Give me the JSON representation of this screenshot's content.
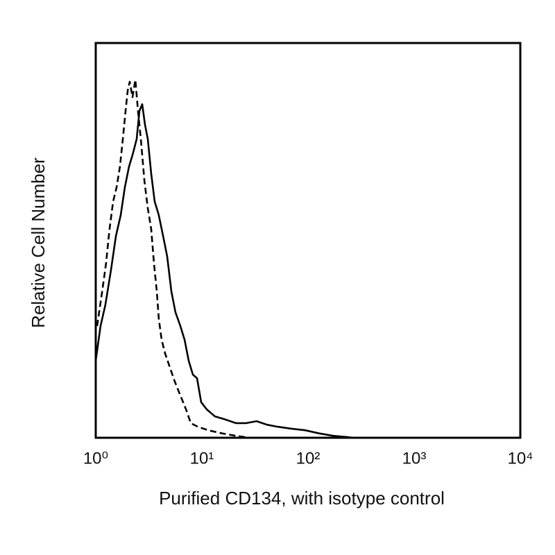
{
  "chart_data": {
    "type": "histogram-overlay",
    "x_label": "Purified CD134, with isotype control",
    "y_label": "Relative Cell Number",
    "xscale": "log",
    "xlim": [
      1,
      10000
    ],
    "ylim": [
      0,
      100
    ],
    "xticks": [
      {
        "value": 1,
        "label": "10⁰"
      },
      {
        "value": 10,
        "label": "10¹"
      },
      {
        "value": 100,
        "label": "10²"
      },
      {
        "value": 1000,
        "label": "10³"
      },
      {
        "value": 10000,
        "label": "10⁴"
      }
    ],
    "series": [
      {
        "color": "#000000",
        "line_style": "solid",
        "x": [
          1,
          1.11,
          1.23,
          1.39,
          1.55,
          1.72,
          1.88,
          2.06,
          2.25,
          2.43,
          2.58,
          2.74,
          2.91,
          3.09,
          3.33,
          3.59,
          3.93,
          4.31,
          4.71,
          5.16,
          5.64,
          6.27,
          6.87,
          7.51,
          8.22,
          9.0,
          9.85,
          11.1,
          13.3,
          16.7,
          20.9,
          26.2,
          32.8,
          41.1,
          51.5,
          69.7,
          94.1,
          127,
          172,
          232,
          270
        ],
        "values": [
          19.5,
          28.3,
          33.6,
          42.4,
          51.1,
          56.4,
          63.4,
          68.7,
          72.2,
          75.7,
          82.8,
          84.5,
          79.3,
          75.7,
          67.0,
          59.9,
          56.4,
          51.1,
          45.9,
          37.1,
          31.8,
          28.3,
          24.8,
          19.5,
          16.0,
          15.1,
          9.0,
          7.2,
          5.4,
          4.6,
          3.7,
          3.7,
          4.2,
          3.3,
          2.8,
          2.3,
          1.9,
          1.1,
          0.5,
          0.2,
          0
        ]
      },
      {
        "color": "#000000",
        "line_style": "dashed",
        "x": [
          1.03,
          1.15,
          1.25,
          1.35,
          1.46,
          1.57,
          1.69,
          1.8,
          1.91,
          2.0,
          2.09,
          2.22,
          2.36,
          2.5,
          2.66,
          2.87,
          3.09,
          3.33,
          3.54,
          3.76,
          3.93,
          4.18,
          4.51,
          5.0,
          5.56,
          6.27,
          7.08,
          7.86,
          9.14,
          11.5,
          15.5,
          20.9,
          28.3
        ],
        "values": [
          28.3,
          37.1,
          44.1,
          52.9,
          59.9,
          63.4,
          68.7,
          75.7,
          82.8,
          88.0,
          90.2,
          86.3,
          90.7,
          82.8,
          75.7,
          65.2,
          58.2,
          52.9,
          44.1,
          37.1,
          30.1,
          24.8,
          21.3,
          17.8,
          14.2,
          10.7,
          7.2,
          3.7,
          2.8,
          1.9,
          1.1,
          0.5,
          0
        ]
      }
    ]
  }
}
